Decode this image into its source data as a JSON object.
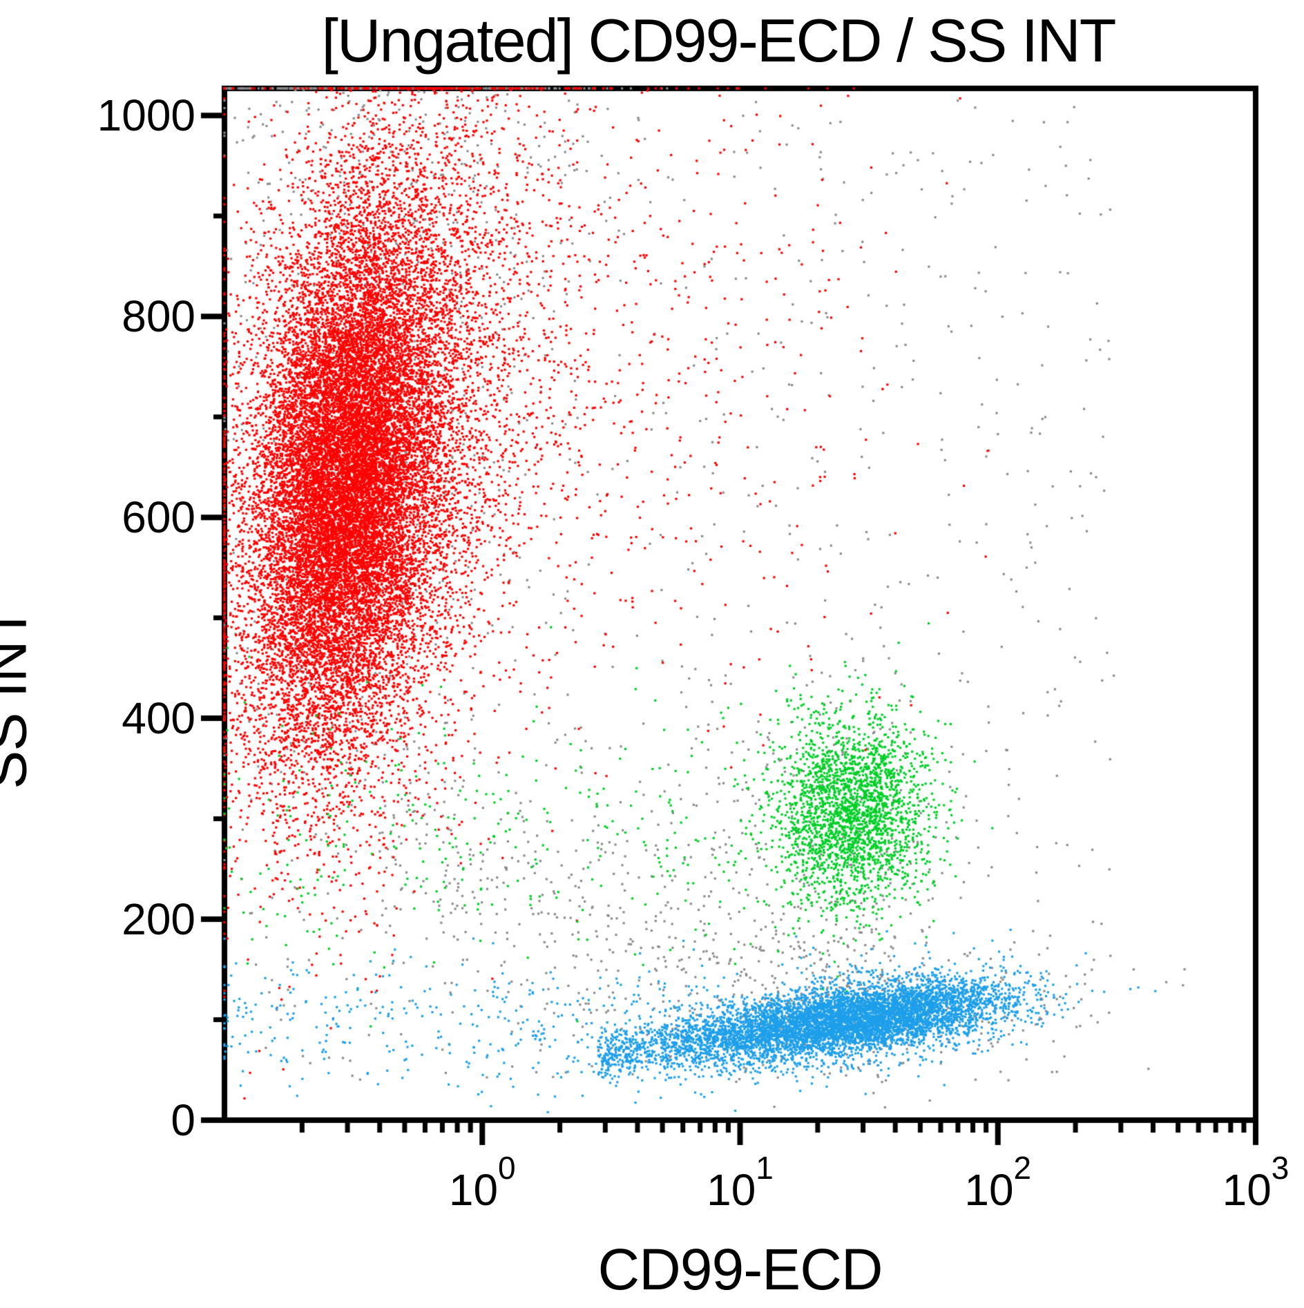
{
  "title": "[Ungated] CD99-ECD / SS INT",
  "colors": {
    "red": "#FF0000",
    "green": "#00CF26",
    "blue": "#1E9FEA",
    "gray": "#8C8C8C",
    "axis": "#000000",
    "background": "#FFFFFF"
  },
  "chart_data": {
    "type": "scatter",
    "title": "[Ungated] CD99-ECD / SS INT",
    "xlabel": "CD99-ECD",
    "ylabel": "SS INT",
    "grid": false,
    "legend": false,
    "x_axis": {
      "scale": "log",
      "min": 0.1,
      "max": 1000,
      "major_ticks": [
        1,
        10,
        100,
        1000
      ],
      "tick_labels": [
        {
          "base": "10",
          "exp": "0"
        },
        {
          "base": "10",
          "exp": "1"
        },
        {
          "base": "10",
          "exp": "2"
        },
        {
          "base": "10",
          "exp": "3"
        }
      ],
      "minor_ticks": "multiples 2-9 per decade"
    },
    "y_axis": {
      "scale": "linear",
      "min": 0,
      "max": 1027,
      "major_ticks": [
        0,
        200,
        400,
        600,
        800,
        1000
      ],
      "tick_labels": [
        "0",
        "200",
        "400",
        "600",
        "800",
        "1000"
      ],
      "minor_step": 100
    },
    "render": {
      "dot_size": 3.2,
      "seed": 1234
    },
    "populations": [
      {
        "name": "gray-field",
        "color": "gray",
        "n": 800,
        "x": {
          "type": "uniform",
          "min": -1.02,
          "max": 2.45
        },
        "y": {
          "type": "uniform",
          "min": 40,
          "max": 1015
        }
      },
      {
        "name": "gray-top-pileup",
        "color": "gray",
        "n": 480,
        "x": {
          "type": "gauss",
          "mean": -0.33,
          "sd": 0.42
        },
        "y": {
          "type": "gauss",
          "mean": 1090,
          "sd": 110
        }
      },
      {
        "name": "gray-in-red-region",
        "color": "gray",
        "n": 600,
        "x": {
          "type": "gauss",
          "mean": -0.42,
          "sd": 0.3
        },
        "y": {
          "type": "gauss",
          "mean": 660,
          "sd": 185
        },
        "corr": 0.3
      },
      {
        "name": "gray-mid-band",
        "color": "gray",
        "n": 450,
        "x": {
          "type": "uniform",
          "min": -0.4,
          "max": 1.75
        },
        "y": {
          "type": "trend",
          "base": 240,
          "slope": -70,
          "noise": 55
        }
      },
      {
        "name": "gray-near-green",
        "color": "gray",
        "n": 200,
        "x": {
          "type": "gauss",
          "mean": 1.35,
          "sd": 0.3
        },
        "y": {
          "type": "gauss",
          "mean": 300,
          "sd": 80
        }
      },
      {
        "name": "gray-near-blue",
        "color": "gray",
        "n": 280,
        "x": {
          "type": "gauss",
          "mean": 1.4,
          "sd": 0.45
        },
        "y": {
          "type": "gauss",
          "mean": 110,
          "sd": 35
        }
      },
      {
        "name": "red-halo",
        "color": "red",
        "n": 6000,
        "x": {
          "type": "gauss",
          "mean": -0.42,
          "sd": 0.32
        },
        "y": {
          "type": "gauss",
          "mean": 680,
          "sd": 190
        },
        "corr": 0.35
      },
      {
        "name": "red-core",
        "color": "red",
        "n": 15000,
        "x": {
          "type": "gauss",
          "mean": -0.52,
          "sd": 0.18
        },
        "y": {
          "type": "gauss",
          "mean": 635,
          "sd": 130
        },
        "corr": 0.25
      },
      {
        "name": "red-sparse-right",
        "color": "red",
        "n": 650,
        "x": {
          "type": "gauss",
          "mean": 0.45,
          "sd": 0.55
        },
        "y": {
          "type": "gauss",
          "mean": 730,
          "sd": 170
        }
      },
      {
        "name": "green-tail",
        "color": "green",
        "n": 330,
        "x": {
          "type": "uniform",
          "min": -1.08,
          "max": 1.25
        },
        "y": {
          "type": "gauss",
          "mean": 285,
          "sd": 65
        }
      },
      {
        "name": "green-core",
        "color": "green",
        "n": 2400,
        "x": {
          "type": "gauss",
          "mean": 1.43,
          "sd": 0.15
        },
        "y": {
          "type": "gauss",
          "mean": 306,
          "sd": 48
        }
      },
      {
        "name": "blue-tail",
        "color": "blue",
        "n": 380,
        "x": {
          "type": "uniform",
          "min": -1.08,
          "max": 0.95
        },
        "y": {
          "type": "gauss",
          "mean": 95,
          "sd": 32
        }
      },
      {
        "name": "blue-halo",
        "color": "blue",
        "n": 600,
        "x": {
          "type": "gauss",
          "mean": 1.4,
          "sd": 0.35
        },
        "y": {
          "type": "trend",
          "base": 55,
          "slope": 33,
          "noise": 30
        }
      },
      {
        "name": "blue-mid",
        "color": "blue",
        "n": 900,
        "x": {
          "type": "uniform",
          "min": 0.45,
          "max": 1.15
        },
        "y": {
          "type": "trend",
          "base": 50,
          "slope": 33,
          "noise": 14
        }
      },
      {
        "name": "blue-core",
        "color": "blue",
        "n": 5200,
        "x": {
          "type": "gauss",
          "mean": 1.45,
          "sd": 0.29
        },
        "y": {
          "type": "trend",
          "base": 52,
          "slope": 33,
          "noise": 16
        }
      }
    ]
  }
}
